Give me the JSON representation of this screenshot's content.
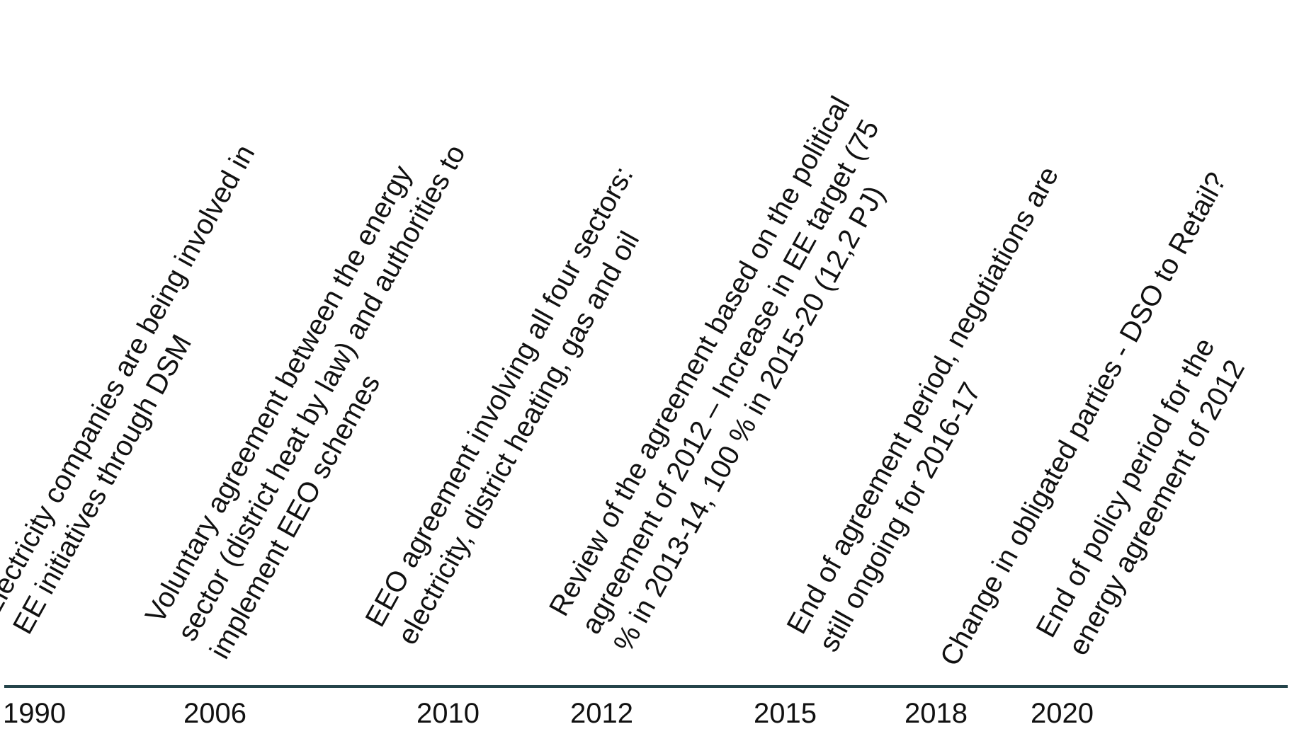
{
  "axis": {
    "color": "#24444a"
  },
  "years": [
    "1990",
    "2006",
    "2010",
    "2012",
    "2015",
    "2018",
    "2020"
  ],
  "events": [
    {
      "lines": [
        "Electricity companies are being involved in",
        "EE initiatives through DSM"
      ]
    },
    {
      "lines": [
        "Voluntary agreement between the energy",
        "sector (district heat by law) and authorities to",
        "implement EEO schemes"
      ]
    },
    {
      "lines": [
        "EEO agreement involving all four sectors:",
        "electricity, district heating, gas and oil"
      ]
    },
    {
      "lines": [
        "Review of the agreement based on the political",
        "agreement of 2012 – Increase in EE target (75",
        "% in 2013-14, 100 % in 2015-20 (12,2 PJ)"
      ]
    },
    {
      "lines": [
        "End of agreement period, negotiations are",
        "still ongoing for 2016-17"
      ]
    },
    {
      "lines": [
        "Change in obligated parties - DSO to Retail?"
      ]
    },
    {
      "lines": [
        "End of policy period for the",
        "energy agreement of 2012"
      ]
    }
  ]
}
